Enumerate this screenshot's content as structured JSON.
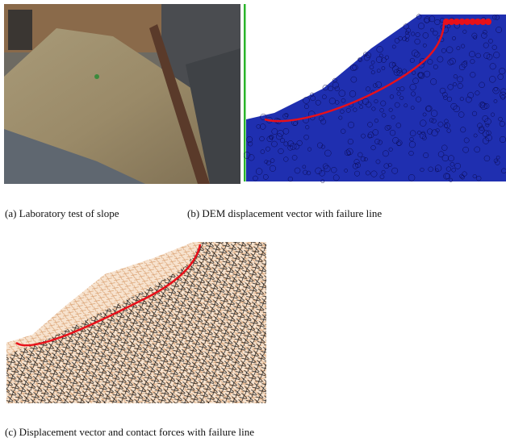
{
  "figures": [
    {
      "caption": "(a) Laboratory test of slope"
    },
    {
      "caption": "(b) DEM displacement vector with failure line"
    },
    {
      "caption": "(c) Displacement vector and contact forces with failure line"
    }
  ]
}
